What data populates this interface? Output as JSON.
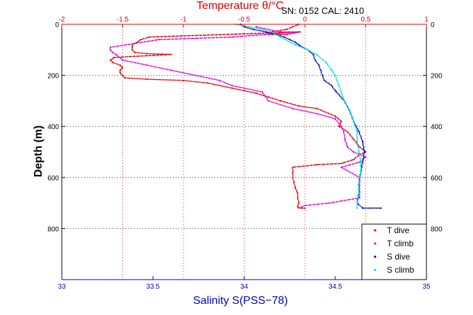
{
  "chart_data": {
    "type": "scatter",
    "title": "Temperature θ/°C",
    "subtitle": "SN: 0152  CAL: 2410",
    "xlabel": "Salinity S(PSS−78)",
    "ylabel": "Depth (m)",
    "y_axis": {
      "ylim": [
        0,
        1000
      ],
      "reversed": true,
      "ticks": [
        "0",
        "200",
        "400",
        "600",
        "800"
      ],
      "tick_values": [
        0,
        200,
        400,
        600,
        800
      ]
    },
    "x_bottom": {
      "xlim": [
        33,
        35
      ],
      "ticks": [
        "33",
        "33.5",
        "34",
        "34.5",
        "35"
      ],
      "tick_values": [
        33,
        33.5,
        34,
        34.5,
        35
      ],
      "color": "#0000c0"
    },
    "x_top": {
      "xlim": [
        -2,
        1
      ],
      "ticks": [
        "-2",
        "-1.5",
        "-1",
        "-0.5",
        "0",
        "0.5",
        "1"
      ],
      "tick_values": [
        -2,
        -1.5,
        -1,
        -0.5,
        0,
        0.5,
        1
      ],
      "color": "#e00000"
    },
    "grid": true,
    "legend_position": "bottom-right",
    "series": [
      {
        "name": "T dive",
        "axis": "temperature",
        "color": "#e00000",
        "points": [
          [
            -0.05,
            0
          ],
          [
            -0.1,
            10
          ],
          [
            -0.15,
            20
          ],
          [
            -0.28,
            30
          ],
          [
            -0.3,
            40
          ],
          [
            -0.15,
            40
          ],
          [
            -0.04,
            30
          ],
          [
            -1.28,
            50
          ],
          [
            -1.35,
            60
          ],
          [
            -1.38,
            70
          ],
          [
            -1.42,
            80
          ],
          [
            -1.42,
            90
          ],
          [
            -1.42,
            100
          ],
          [
            -1.4,
            110
          ],
          [
            -1.3,
            115
          ],
          [
            -1.1,
            118
          ],
          [
            -1.57,
            130
          ],
          [
            -1.6,
            140
          ],
          [
            -1.58,
            150
          ],
          [
            -1.52,
            160
          ],
          [
            -1.5,
            170
          ],
          [
            -1.52,
            180
          ],
          [
            -1.52,
            190
          ],
          [
            -1.5,
            200
          ],
          [
            -1.48,
            210
          ],
          [
            -1.3,
            215
          ],
          [
            -1.0,
            220
          ],
          [
            -0.8,
            230
          ],
          [
            -0.6,
            250
          ],
          [
            -0.5,
            260
          ],
          [
            -0.4,
            270
          ],
          [
            -0.3,
            285
          ],
          [
            -0.2,
            300
          ],
          [
            -0.05,
            320
          ],
          [
            0.1,
            330
          ],
          [
            0.25,
            360
          ],
          [
            0.3,
            380
          ],
          [
            0.28,
            400
          ],
          [
            0.35,
            420
          ],
          [
            0.4,
            450
          ],
          [
            0.45,
            480
          ],
          [
            0.5,
            500
          ],
          [
            0.45,
            510
          ],
          [
            0.4,
            530
          ],
          [
            0.3,
            545
          ],
          [
            0.1,
            550
          ],
          [
            -0.1,
            560
          ],
          [
            -0.1,
            580
          ],
          [
            -0.1,
            600
          ],
          [
            -0.09,
            620
          ],
          [
            -0.08,
            640
          ],
          [
            -0.06,
            660
          ],
          [
            -0.06,
            680
          ],
          [
            -0.05,
            700
          ],
          [
            -0.06,
            715
          ],
          [
            -0.03,
            720
          ],
          [
            0.0,
            720
          ]
        ]
      },
      {
        "name": "T climb",
        "axis": "temperature",
        "color": "#e000e0",
        "points": [
          [
            -0.4,
            10
          ],
          [
            -0.2,
            30
          ],
          [
            -0.05,
            30
          ],
          [
            -0.6,
            50
          ],
          [
            -0.9,
            55
          ],
          [
            -1.2,
            60
          ],
          [
            -1.6,
            90
          ],
          [
            -1.6,
            100
          ],
          [
            -1.58,
            110
          ],
          [
            -1.55,
            120
          ],
          [
            -1.5,
            140
          ],
          [
            -1.3,
            160
          ],
          [
            -1.1,
            180
          ],
          [
            -0.9,
            200
          ],
          [
            -0.7,
            220
          ],
          [
            -0.6,
            240
          ],
          [
            -0.5,
            250
          ],
          [
            -0.35,
            265
          ],
          [
            -0.3,
            300
          ],
          [
            -0.1,
            330
          ],
          [
            0.1,
            350
          ],
          [
            0.25,
            370
          ],
          [
            0.3,
            400
          ],
          [
            0.32,
            420
          ],
          [
            0.33,
            450
          ],
          [
            0.35,
            480
          ],
          [
            0.4,
            500
          ],
          [
            0.5,
            520
          ],
          [
            0.45,
            540
          ],
          [
            0.3,
            560
          ],
          [
            0.45,
            600
          ],
          [
            0.45,
            640
          ],
          [
            0.45,
            680
          ],
          [
            0.2,
            700
          ],
          [
            0.0,
            710
          ],
          [
            -0.05,
            720
          ]
        ]
      },
      {
        "name": "S dive",
        "axis": "salinity",
        "color": "#0000c0",
        "points": [
          [
            33.98,
            0
          ],
          [
            34.0,
            10
          ],
          [
            34.05,
            20
          ],
          [
            34.12,
            30
          ],
          [
            34.18,
            40
          ],
          [
            34.22,
            50
          ],
          [
            34.25,
            60
          ],
          [
            34.28,
            70
          ],
          [
            34.3,
            80
          ],
          [
            34.32,
            90
          ],
          [
            34.35,
            100
          ],
          [
            34.38,
            120
          ],
          [
            34.39,
            140
          ],
          [
            34.41,
            160
          ],
          [
            34.42,
            180
          ],
          [
            34.43,
            200
          ],
          [
            34.44,
            220
          ],
          [
            34.48,
            240
          ],
          [
            34.5,
            260
          ],
          [
            34.55,
            300
          ],
          [
            34.58,
            340
          ],
          [
            34.6,
            380
          ],
          [
            34.63,
            420
          ],
          [
            34.65,
            460
          ],
          [
            34.66,
            500
          ],
          [
            34.65,
            540
          ],
          [
            34.64,
            580
          ],
          [
            34.63,
            620
          ],
          [
            34.63,
            660
          ],
          [
            34.62,
            700
          ],
          [
            34.65,
            720
          ],
          [
            34.75,
            720
          ]
        ]
      },
      {
        "name": "S climb",
        "axis": "salinity",
        "color": "#00e0e0",
        "points": [
          [
            33.95,
            0
          ],
          [
            34.03,
            10
          ],
          [
            34.1,
            20
          ],
          [
            34.15,
            30
          ],
          [
            34.2,
            50
          ],
          [
            34.28,
            80
          ],
          [
            34.35,
            100
          ],
          [
            34.4,
            120
          ],
          [
            34.45,
            150
          ],
          [
            34.48,
            180
          ],
          [
            34.5,
            200
          ],
          [
            34.51,
            220
          ],
          [
            34.52,
            240
          ],
          [
            34.53,
            260
          ],
          [
            34.55,
            300
          ],
          [
            34.58,
            340
          ],
          [
            34.6,
            380
          ],
          [
            34.62,
            420
          ],
          [
            34.62,
            460
          ],
          [
            34.63,
            500
          ],
          [
            34.64,
            540
          ],
          [
            34.64,
            580
          ],
          [
            34.63,
            620
          ],
          [
            34.63,
            660
          ],
          [
            34.62,
            700
          ],
          [
            34.62,
            720
          ]
        ]
      }
    ]
  }
}
